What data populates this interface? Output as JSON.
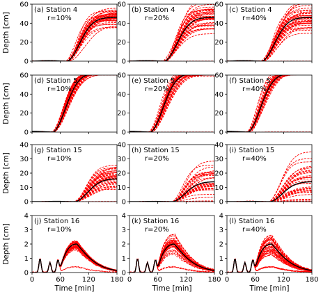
{
  "figure": {
    "ylabel": "Depth [cm]",
    "xlabel": "Time [min]",
    "xticks": [
      0,
      60,
      120,
      180
    ],
    "line_colors": {
      "ensemble": "#ff0000",
      "reference": "#000000"
    }
  },
  "chart_data": [
    {
      "type": "line",
      "panel": "a",
      "label_line1": "(a) Station 4",
      "label_line2": "r=10%",
      "station": 4,
      "r": "10%",
      "ylim": [
        0,
        60
      ],
      "yticks": [
        0,
        20,
        40,
        60
      ],
      "xlim": [
        0,
        180
      ],
      "onset": 75,
      "final": 46,
      "spread": 0.18,
      "zero_frac": 0.04
    },
    {
      "type": "line",
      "panel": "b",
      "label_line1": "(b) Station 4",
      "label_line2": "r=20%",
      "station": 4,
      "r": "20%",
      "ylim": [
        0,
        60
      ],
      "yticks": [
        0,
        20,
        40,
        60
      ],
      "xlim": [
        0,
        180
      ],
      "onset": 75,
      "final": 46,
      "spread": 0.26,
      "zero_frac": 0.04
    },
    {
      "type": "line",
      "panel": "c",
      "label_line1": "(c) Station 4",
      "label_line2": "r=40%",
      "station": 4,
      "r": "40%",
      "ylim": [
        0,
        60
      ],
      "yticks": [
        0,
        20,
        40,
        60
      ],
      "xlim": [
        0,
        180
      ],
      "onset": 75,
      "final": 46,
      "spread": 0.3,
      "zero_frac": 0.03
    },
    {
      "type": "line",
      "panel": "d",
      "label_line1": "(d) Station 5",
      "label_line2": "r=10%",
      "station": 5,
      "r": "10%",
      "ylim": [
        0,
        60
      ],
      "yticks": [
        0,
        20,
        40,
        60
      ],
      "xlim": [
        0,
        180
      ],
      "onset": 45,
      "final": 62,
      "spread": 0.04,
      "zero_frac": 0.08
    },
    {
      "type": "line",
      "panel": "e",
      "label_line1": "(e) Station 5",
      "label_line2": "r=20%",
      "station": 5,
      "r": "20%",
      "ylim": [
        0,
        60
      ],
      "yticks": [
        0,
        20,
        40,
        60
      ],
      "xlim": [
        0,
        180
      ],
      "onset": 45,
      "final": 62,
      "spread": 0.05,
      "zero_frac": 0.06
    },
    {
      "type": "line",
      "panel": "f",
      "label_line1": "(f) Station 5",
      "label_line2": "r=40%",
      "station": 5,
      "r": "40%",
      "ylim": [
        0,
        60
      ],
      "yticks": [
        0,
        20,
        40,
        60
      ],
      "xlim": [
        0,
        180
      ],
      "onset": 45,
      "final": 62,
      "spread": 0.05,
      "zero_frac": 0.06
    },
    {
      "type": "line",
      "panel": "g",
      "label_line1": "(g) Station 15",
      "label_line2": "r=10%",
      "station": 15,
      "r": "10%",
      "ylim": [
        0,
        40
      ],
      "yticks": [
        0,
        10,
        20,
        30,
        40
      ],
      "xlim": [
        0,
        180
      ],
      "onset": 92,
      "final": 16,
      "spread": 0.5,
      "zero_frac": 0.06
    },
    {
      "type": "line",
      "panel": "h",
      "label_line1": "(h) Station 15",
      "label_line2": "r=20%",
      "station": 15,
      "r": "20%",
      "ylim": [
        0,
        40
      ],
      "yticks": [
        0,
        10,
        20,
        30,
        40
      ],
      "xlim": [
        0,
        180
      ],
      "onset": 92,
      "final": 14,
      "spread": 0.85,
      "zero_frac": 0.05
    },
    {
      "type": "line",
      "panel": "i",
      "label_line1": "(i) Station 15",
      "label_line2": "r=40%",
      "station": 15,
      "r": "40%",
      "ylim": [
        0,
        40
      ],
      "yticks": [
        0,
        10,
        20,
        30,
        40
      ],
      "xlim": [
        0,
        180
      ],
      "onset": 92,
      "final": 14,
      "spread": 1.2,
      "zero_frac": 0.05
    },
    {
      "type": "line",
      "panel": "j",
      "label_line1": "(j) Station 16",
      "label_line2": "r=10%",
      "station": 16,
      "r": "10%",
      "ylim": [
        0,
        4
      ],
      "yticks": [
        0,
        1,
        2,
        3,
        4
      ],
      "xlim": [
        0,
        180
      ],
      "peak": 2.0,
      "peak_t": 95,
      "spread": 0.2
    },
    {
      "type": "line",
      "panel": "k",
      "label_line1": "(k) Station 16",
      "label_line2": "r=20%",
      "station": 16,
      "r": "20%",
      "ylim": [
        0,
        4
      ],
      "yticks": [
        0,
        1,
        2,
        3,
        4
      ],
      "xlim": [
        0,
        180
      ],
      "peak": 2.0,
      "peak_t": 95,
      "spread": 0.3
    },
    {
      "type": "line",
      "panel": "l",
      "label_line1": "(l) Station 16",
      "label_line2": "r=40%",
      "station": 16,
      "r": "40%",
      "ylim": [
        0,
        4
      ],
      "yticks": [
        0,
        1,
        2,
        3,
        4
      ],
      "xlim": [
        0,
        180
      ],
      "peak": 2.0,
      "peak_t": 95,
      "spread": 0.35
    }
  ]
}
